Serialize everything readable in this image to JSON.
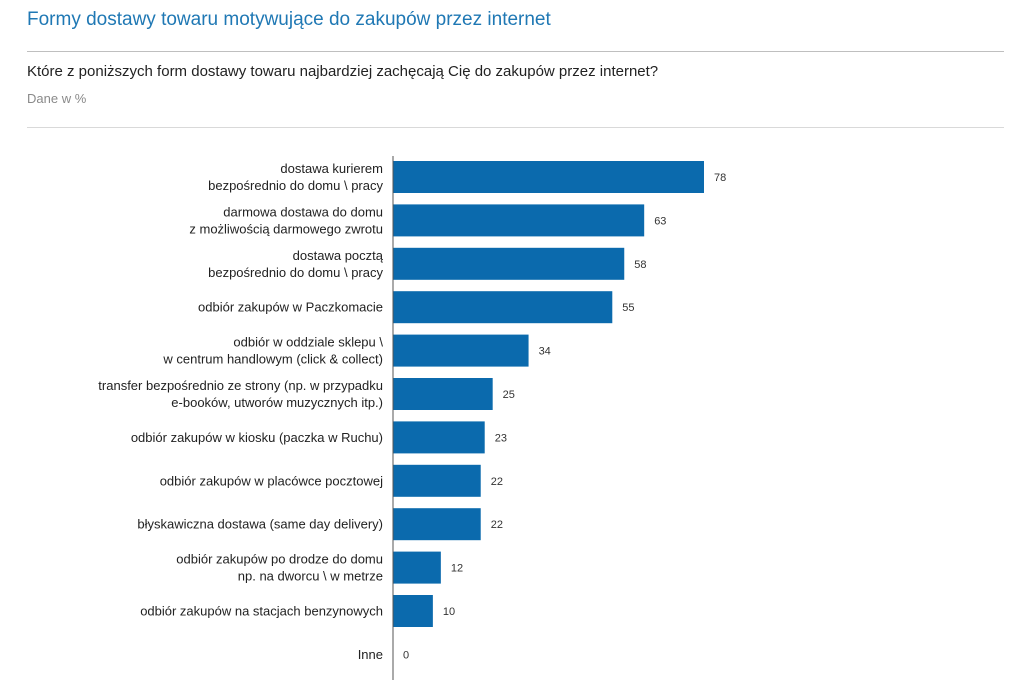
{
  "header": {
    "title": "Formy dostawy towaru motywujące do zakupów przez internet",
    "question": "Które z poniższych form dostawy towaru najbardziej zachęcają Cię do zakupów przez internet?",
    "units_note": "Dane w %"
  },
  "colors": {
    "bar": "#0b6aad",
    "title": "#1f78b4",
    "axis": "#555555"
  },
  "chart_data": {
    "type": "bar",
    "orientation": "horizontal",
    "categories": [
      [
        "dostawa kurierem",
        "bezpośrednio do domu \\ pracy"
      ],
      [
        "darmowa dostawa do domu",
        "z możliwością darmowego zwrotu"
      ],
      [
        "dostawa pocztą",
        "bezpośrednio do domu \\ pracy"
      ],
      [
        "odbiór zakupów w Paczkomacie"
      ],
      [
        "odbiór w oddziale sklepu \\",
        "w centrum handlowym (click & collect)"
      ],
      [
        "transfer bezpośrednio ze strony (np. w przypadku",
        "e-booków, utworów muzycznych itp.)"
      ],
      [
        "odbiór zakupów w kiosku (paczka w Ruchu)"
      ],
      [
        "odbiór zakupów w placówce pocztowej"
      ],
      [
        "błyskawiczna dostawa (same day delivery)"
      ],
      [
        "odbiór zakupów po drodze do domu",
        "np. na dworcu \\ w metrze"
      ],
      [
        "odbiór zakupów na stacjach benzynowych"
      ],
      [
        "Inne"
      ]
    ],
    "values": [
      78,
      63,
      58,
      55,
      34,
      25,
      23,
      22,
      22,
      12,
      10,
      0
    ],
    "xlim": [
      0,
      100
    ],
    "grid": false,
    "legend": "none",
    "title": "",
    "xlabel": "",
    "ylabel": ""
  }
}
